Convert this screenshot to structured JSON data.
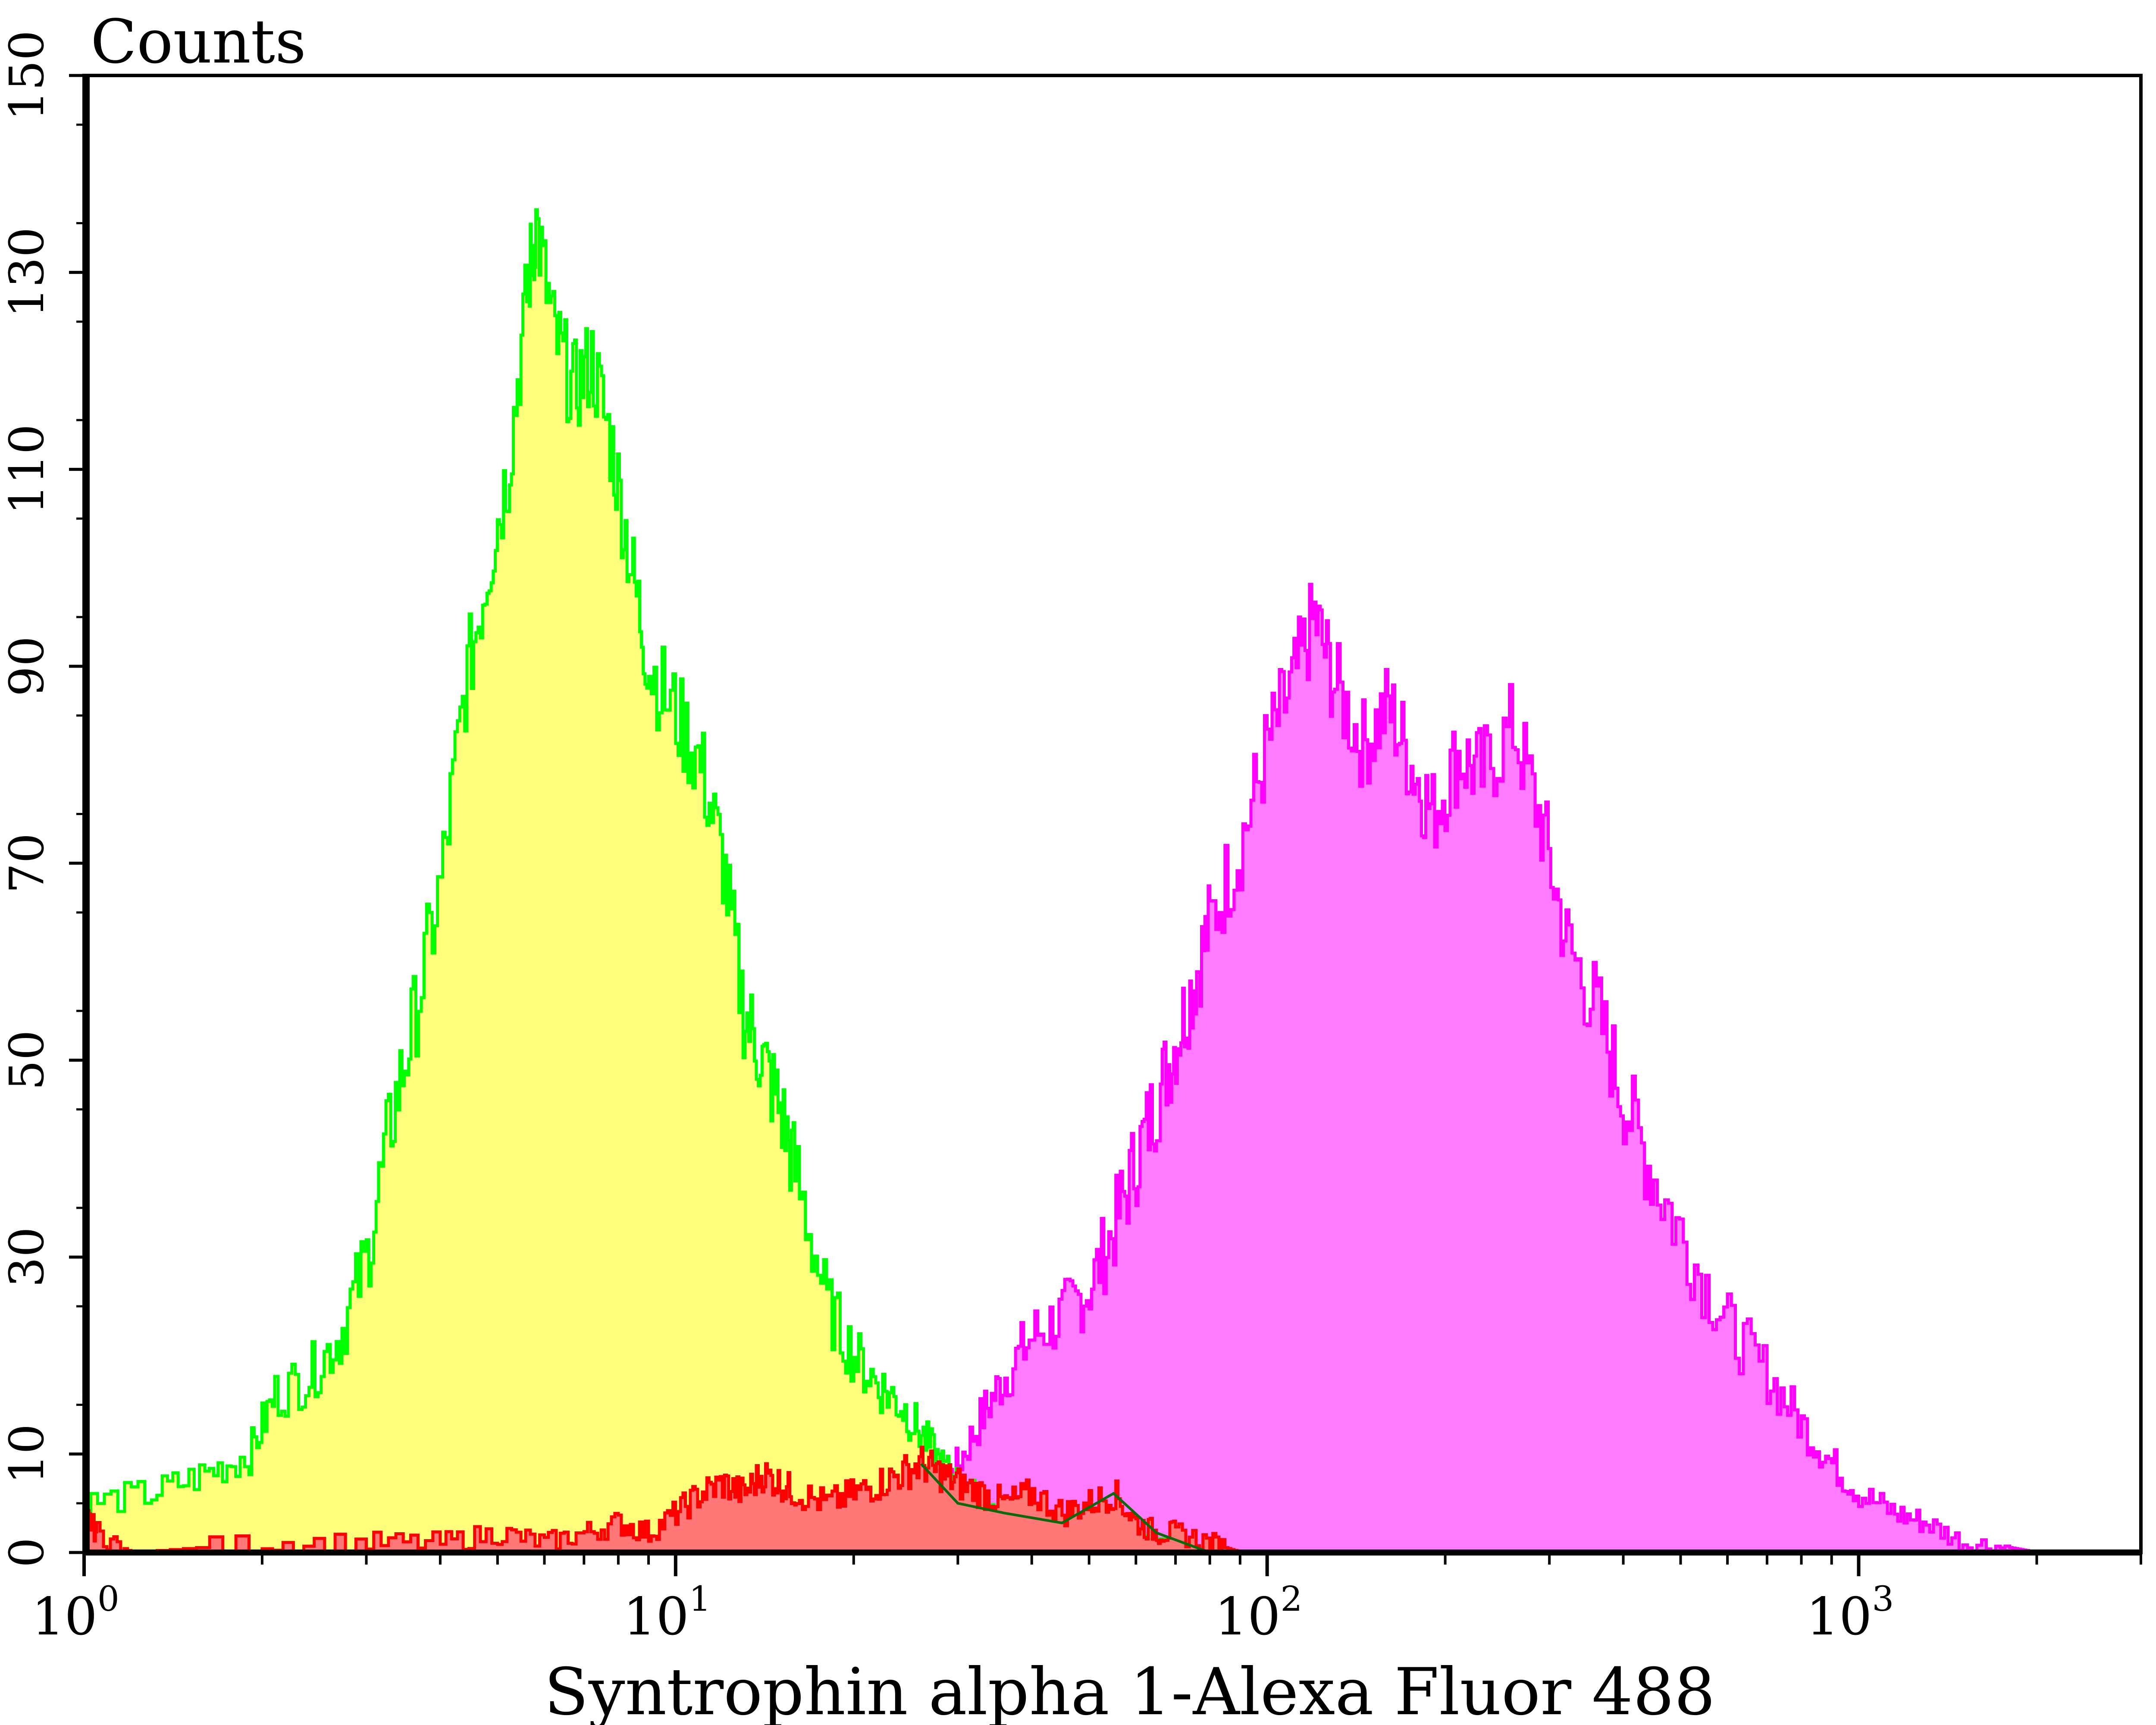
{
  "chart_data": {
    "type": "area",
    "title": "",
    "xlabel": "Syntrophin alpha 1-Alexa Fluor 488",
    "ylabel": "Counts",
    "x_scale": "log",
    "xlim": [
      1,
      3000
    ],
    "ylim": [
      0,
      150
    ],
    "grid": false,
    "legend": "none",
    "x_ticks": [
      {
        "value": 1,
        "base": "10",
        "exp": "0"
      },
      {
        "value": 10,
        "base": "10",
        "exp": "1"
      },
      {
        "value": 100,
        "base": "10",
        "exp": "2"
      },
      {
        "value": 1000,
        "base": "10",
        "exp": "3"
      }
    ],
    "y_ticks": [
      0,
      10,
      30,
      50,
      70,
      90,
      110,
      130,
      150
    ],
    "series": [
      {
        "color": "#FF7BFF",
        "line_color": "#FF00FF",
        "points": [
          [
            20,
            0
          ],
          [
            23,
            1
          ],
          [
            26,
            3
          ],
          [
            28,
            6
          ],
          [
            30,
            9
          ],
          [
            33,
            14
          ],
          [
            36,
            18
          ],
          [
            40,
            22
          ],
          [
            45,
            24
          ],
          [
            50,
            27
          ],
          [
            55,
            33
          ],
          [
            60,
            40
          ],
          [
            65,
            46
          ],
          [
            70,
            52
          ],
          [
            75,
            58
          ],
          [
            80,
            64
          ],
          [
            90,
            72
          ],
          [
            100,
            82
          ],
          [
            110,
            88
          ],
          [
            120,
            95
          ],
          [
            130,
            88
          ],
          [
            145,
            82
          ],
          [
            160,
            86
          ],
          [
            175,
            80
          ],
          [
            190,
            75
          ],
          [
            210,
            81
          ],
          [
            230,
            79
          ],
          [
            260,
            84
          ],
          [
            290,
            74
          ],
          [
            320,
            62
          ],
          [
            360,
            55
          ],
          [
            400,
            46
          ],
          [
            450,
            38
          ],
          [
            520,
            30
          ],
          [
            600,
            23
          ],
          [
            700,
            18
          ],
          [
            800,
            13
          ],
          [
            900,
            9
          ],
          [
            1000,
            6
          ],
          [
            1150,
            4
          ],
          [
            1300,
            3
          ],
          [
            1500,
            1
          ],
          [
            1800,
            0.5
          ],
          [
            2000,
            0
          ]
        ]
      },
      {
        "color": "#FFFF7B",
        "line_color": "#00FF00",
        "points": [
          [
            1,
            5
          ],
          [
            1.3,
            6
          ],
          [
            1.6,
            8
          ],
          [
            1.9,
            10
          ],
          [
            2.1,
            16
          ],
          [
            2.4,
            18
          ],
          [
            2.7,
            22
          ],
          [
            3,
            30
          ],
          [
            3.3,
            44
          ],
          [
            3.6,
            54
          ],
          [
            4,
            68
          ],
          [
            4.4,
            88
          ],
          [
            4.8,
            100
          ],
          [
            5.2,
            110
          ],
          [
            5.6,
            128
          ],
          [
            5.8,
            135
          ],
          [
            6.2,
            124
          ],
          [
            6.7,
            118
          ],
          [
            7.2,
            121
          ],
          [
            7.8,
            112
          ],
          [
            8.4,
            100
          ],
          [
            9,
            90
          ],
          [
            10,
            85
          ],
          [
            11,
            80
          ],
          [
            12,
            70
          ],
          [
            13,
            55
          ],
          [
            14,
            50
          ],
          [
            15,
            45
          ],
          [
            16,
            38
          ],
          [
            18,
            25
          ],
          [
            20,
            20
          ],
          [
            22,
            17
          ],
          [
            24,
            15
          ],
          [
            26,
            12
          ],
          [
            28,
            9
          ],
          [
            30,
            7
          ],
          [
            33,
            5
          ],
          [
            37,
            3
          ],
          [
            42,
            2
          ],
          [
            50,
            1
          ],
          [
            60,
            1
          ],
          [
            80,
            0
          ]
        ]
      },
      {
        "color": "#FF7777",
        "line_color": "#FF0000",
        "points": [
          [
            1,
            4
          ],
          [
            1.05,
            2
          ],
          [
            1.2,
            0
          ],
          [
            2,
            1
          ],
          [
            3,
            1
          ],
          [
            4,
            1
          ],
          [
            5,
            2
          ],
          [
            6,
            1
          ],
          [
            7,
            2
          ],
          [
            8,
            3
          ],
          [
            9,
            2
          ],
          [
            10,
            4
          ],
          [
            11,
            6
          ],
          [
            12,
            7
          ],
          [
            13,
            6
          ],
          [
            14,
            8
          ],
          [
            15,
            7
          ],
          [
            16,
            6
          ],
          [
            18,
            5
          ],
          [
            20,
            6
          ],
          [
            22,
            7
          ],
          [
            24,
            8
          ],
          [
            26,
            9
          ],
          [
            28,
            8
          ],
          [
            30,
            7
          ],
          [
            33,
            6
          ],
          [
            36,
            5
          ],
          [
            40,
            6
          ],
          [
            45,
            4
          ],
          [
            50,
            5
          ],
          [
            55,
            6
          ],
          [
            60,
            3
          ],
          [
            65,
            2
          ],
          [
            70,
            2
          ],
          [
            80,
            1
          ],
          [
            90,
            0
          ]
        ]
      }
    ]
  }
}
